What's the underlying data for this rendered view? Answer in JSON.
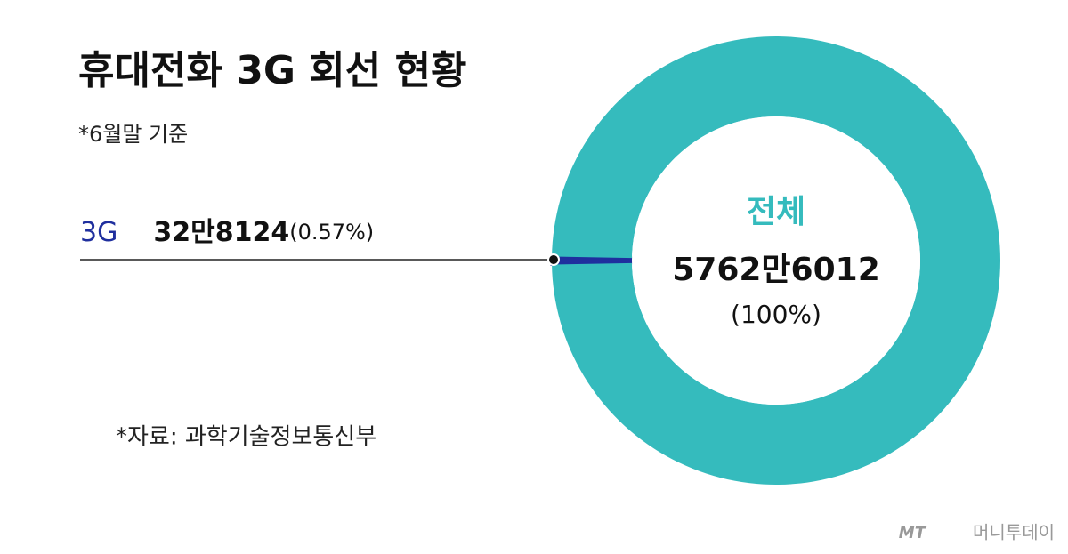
{
  "chart_data": {
    "type": "donut",
    "title": "휴대전화 3G 회선 현황",
    "subtitle": "*6월말 기준",
    "source": "*자료: 과학기술정보통신부",
    "categories": [
      "3G",
      null
    ],
    "values": [
      328124,
      57297888
    ],
    "value_labels": [
      "32만8124",
      null
    ],
    "percent_labels": [
      "(0.57%)",
      null
    ],
    "colors": [
      "#1f2f9e",
      "#35bbbd"
    ],
    "total": {
      "label": "전체",
      "value": 57626012,
      "value_label": "5762만6012",
      "percent_label": "(100%)"
    },
    "logo": "MT",
    "credit": "머니투데이"
  }
}
